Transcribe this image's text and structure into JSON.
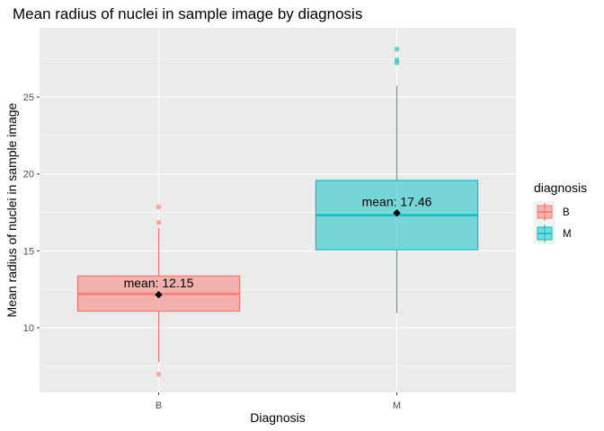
{
  "chart_data": {
    "type": "box",
    "title": "Mean radius of nuclei in sample image by diagnosis",
    "xlabel": "Diagnosis",
    "ylabel": "Mean radius of nuclei in sample image",
    "categories": [
      "B",
      "M"
    ],
    "ylim": [
      5.8,
      29.5
    ],
    "yticks": [
      10,
      15,
      20,
      25
    ],
    "grid": true,
    "legend": {
      "title": "diagnosis",
      "position": "right",
      "entries": [
        "B",
        "M"
      ]
    },
    "colors": {
      "B": "#f8766d",
      "M": "#00bfc4"
    },
    "boxes": [
      {
        "category": "B",
        "whisker_low": 7.76,
        "q1": 11.08,
        "median": 12.2,
        "q3": 13.37,
        "whisker_high": 16.5,
        "outliers": [
          6.98,
          16.84,
          17.85
        ],
        "mean": 12.15,
        "mean_label": "mean:  12.15"
      },
      {
        "category": "M",
        "whisker_low": 10.95,
        "q1": 15.07,
        "median": 17.32,
        "q3": 19.58,
        "whisker_high": 25.73,
        "outliers": [
          27.22,
          27.42,
          28.11
        ],
        "mean": 17.46,
        "mean_label": "mean:  17.46"
      }
    ]
  }
}
